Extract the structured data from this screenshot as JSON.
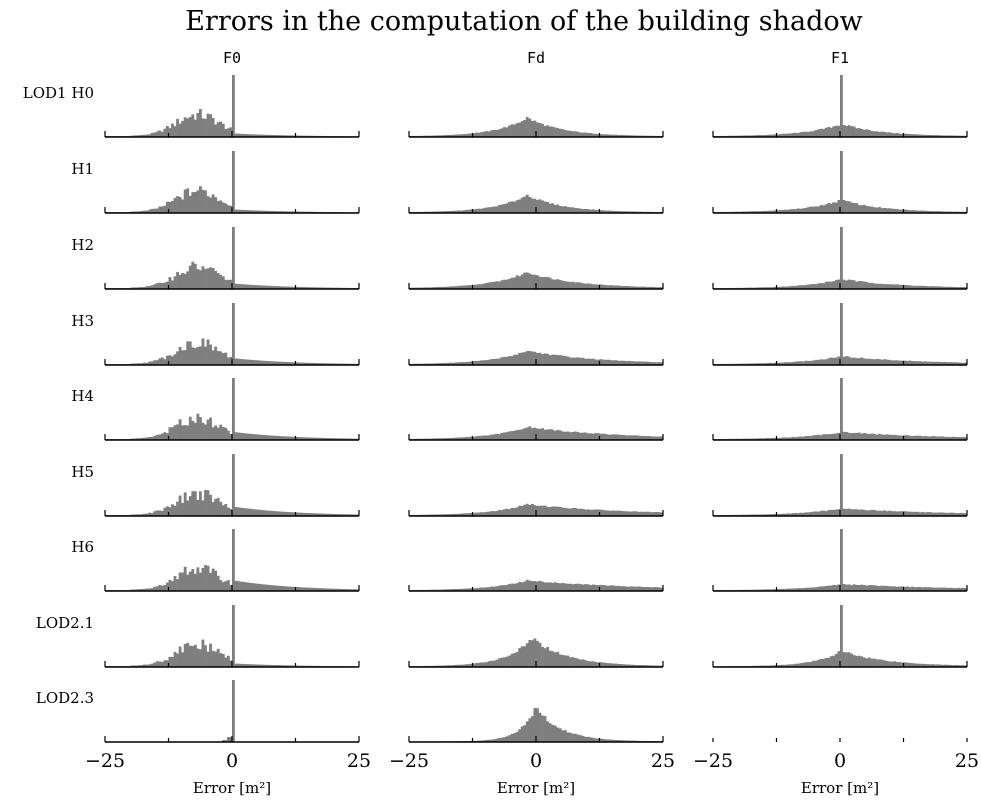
{
  "chart_data": {
    "type": "bar",
    "title": "Errors in the computation of the building shadow",
    "subtype": "histogram-grid",
    "xlabel": "Error [m²]",
    "xlim": [
      -25,
      25
    ],
    "xticks": [
      -25,
      -12.5,
      0,
      12.5,
      25
    ],
    "xtick_labels": [
      "−25",
      "",
      "0",
      "",
      "25"
    ],
    "bin_width": 0.5,
    "columns": [
      "F0",
      "Fd",
      "F1"
    ],
    "rows": [
      "LOD1 H0",
      "H1",
      "H2",
      "H3",
      "H4",
      "H5",
      "H6",
      "LOD2.1",
      "LOD2.3"
    ],
    "colors": {
      "bars": "#7f7f7f",
      "axis": "#000000"
    },
    "panels": [
      {
        "row": "LOD1 H0",
        "column": "F0",
        "shape": "negskew",
        "spread": 0.05,
        "peak_height": 1.0
      },
      {
        "row": "LOD1 H0",
        "column": "Fd",
        "shape": "hump",
        "left_width": 6,
        "right_width": 7,
        "hump_height": 0.3,
        "center": -2
      },
      {
        "row": "LOD1 H0",
        "column": "F1",
        "shape": "spike",
        "left_width": 7,
        "right_width": 8,
        "hump_height": 0.2,
        "peak_height": 1.0
      },
      {
        "row": "H1",
        "column": "F0",
        "shape": "negskew",
        "spread": 0.05,
        "peak_height": 1.0
      },
      {
        "row": "H1",
        "column": "Fd",
        "shape": "hump",
        "left_width": 6,
        "right_width": 7,
        "hump_height": 0.28,
        "center": -2
      },
      {
        "row": "H1",
        "column": "F1",
        "shape": "spike",
        "left_width": 7,
        "right_width": 8,
        "hump_height": 0.2,
        "peak_height": 1.0
      },
      {
        "row": "H2",
        "column": "F0",
        "shape": "negskew",
        "spread": 0.08,
        "peak_height": 1.0
      },
      {
        "row": "H2",
        "column": "Fd",
        "shape": "hump",
        "left_width": 7,
        "right_width": 10,
        "hump_height": 0.26,
        "center": -2
      },
      {
        "row": "H2",
        "column": "F1",
        "shape": "spike",
        "left_width": 7,
        "right_width": 12,
        "hump_height": 0.15,
        "peak_height": 1.0
      },
      {
        "row": "H3",
        "column": "F0",
        "shape": "negskew",
        "spread": 0.1,
        "peak_height": 1.0
      },
      {
        "row": "H3",
        "column": "Fd",
        "shape": "hump",
        "left_width": 7,
        "right_width": 14,
        "hump_height": 0.22,
        "center": -2
      },
      {
        "row": "H3",
        "column": "F1",
        "shape": "spike",
        "left_width": 8,
        "right_width": 16,
        "hump_height": 0.13,
        "peak_height": 1.0
      },
      {
        "row": "H4",
        "column": "F0",
        "shape": "negskew",
        "spread": 0.12,
        "peak_height": 1.0
      },
      {
        "row": "H4",
        "column": "Fd",
        "shape": "hump",
        "left_width": 7,
        "right_width": 18,
        "hump_height": 0.2,
        "center": -2
      },
      {
        "row": "H4",
        "column": "F1",
        "shape": "spike",
        "left_width": 8,
        "right_width": 20,
        "hump_height": 0.12,
        "peak_height": 1.0
      },
      {
        "row": "H5",
        "column": "F0",
        "shape": "negskew",
        "spread": 0.14,
        "peak_height": 1.0
      },
      {
        "row": "H5",
        "column": "Fd",
        "shape": "hump",
        "left_width": 7,
        "right_width": 20,
        "hump_height": 0.18,
        "center": -2
      },
      {
        "row": "H5",
        "column": "F1",
        "shape": "spike",
        "left_width": 8,
        "right_width": 22,
        "hump_height": 0.11,
        "peak_height": 1.0
      },
      {
        "row": "H6",
        "column": "F0",
        "shape": "negskew",
        "spread": 0.16,
        "peak_height": 1.0
      },
      {
        "row": "H6",
        "column": "Fd",
        "shape": "hump",
        "left_width": 7,
        "right_width": 22,
        "hump_height": 0.16,
        "center": -2
      },
      {
        "row": "H6",
        "column": "F1",
        "shape": "spike",
        "left_width": 8,
        "right_width": 24,
        "hump_height": 0.1,
        "peak_height": 1.0
      },
      {
        "row": "LOD2.1",
        "column": "F0",
        "shape": "negskew",
        "spread": 0.05,
        "peak_height": 1.0
      },
      {
        "row": "LOD2.1",
        "column": "Fd",
        "shape": "hump",
        "left_width": 5,
        "right_width": 7,
        "hump_height": 0.45,
        "center": -1
      },
      {
        "row": "LOD2.1",
        "column": "F1",
        "shape": "spike",
        "left_width": 5,
        "right_width": 9,
        "hump_height": 0.25,
        "peak_height": 1.0
      },
      {
        "row": "LOD2.3",
        "column": "F0",
        "shape": "narrow",
        "peak_height": 1.0
      },
      {
        "row": "LOD2.3",
        "column": "Fd",
        "shape": "hump",
        "left_width": 3,
        "right_width": 5,
        "hump_height": 0.55,
        "center": -0.3
      },
      {
        "row": "LOD2.3",
        "column": "F1",
        "shape": "empty"
      }
    ]
  }
}
